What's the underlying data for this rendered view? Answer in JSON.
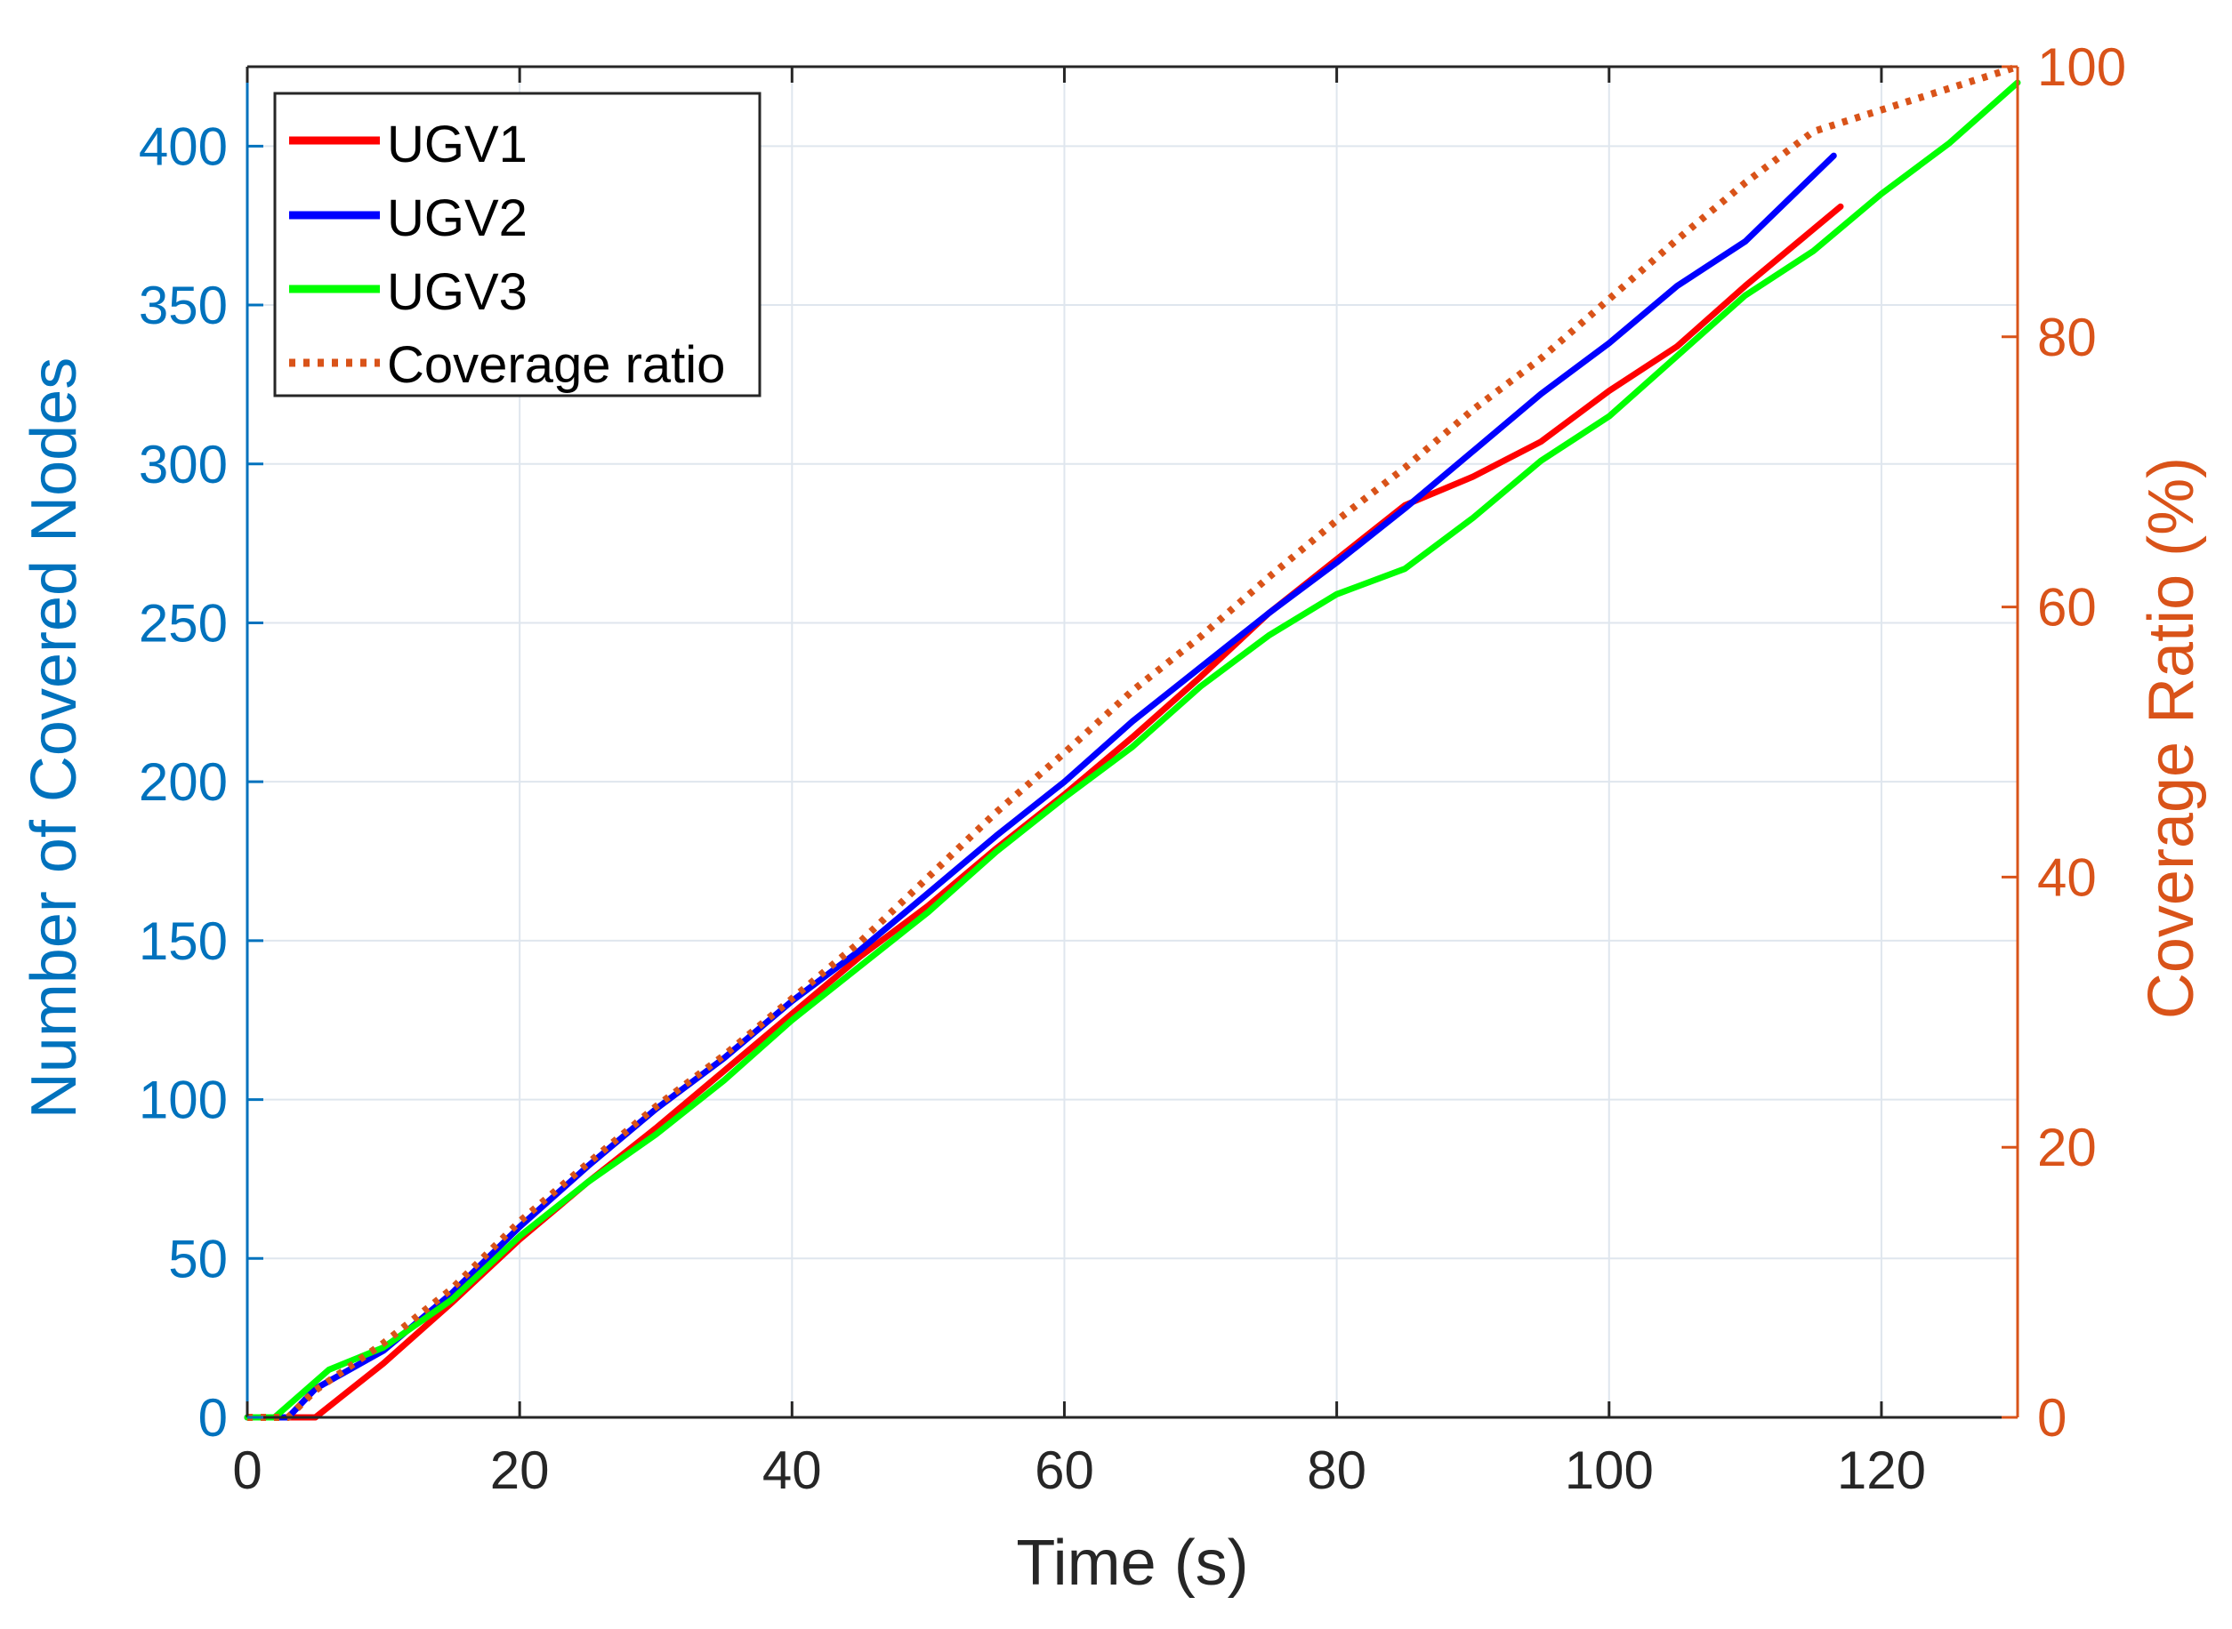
{
  "colors": {
    "left_axis": "#0072BD",
    "right_axis": "#D95319",
    "axes": "#262626",
    "grid": "#dfe6ee",
    "ugv1": "#ff0000",
    "ugv2": "#0000ff",
    "ugv3": "#00ff00",
    "coverage": "#D95319"
  },
  "chart_data": {
    "type": "line",
    "xlabel": "Time (s)",
    "ylabel_left": "Number of Covered Nodes",
    "ylabel_right": "Coverage Ratio (%)",
    "xlim": [
      0,
      130
    ],
    "ylim_left": [
      0,
      425
    ],
    "ylim_right": [
      0,
      100
    ],
    "xticks": [
      "0",
      "20",
      "40",
      "60",
      "80",
      "100",
      "120"
    ],
    "yticks_left": [
      "0",
      "50",
      "100",
      "150",
      "200",
      "250",
      "300",
      "350",
      "400"
    ],
    "yticks_right": [
      "0",
      "20",
      "40",
      "60",
      "80",
      "100"
    ],
    "grid": true,
    "legend": {
      "placement": "top-left",
      "entries": [
        "UGV1",
        "UGV2",
        "UGV3",
        "Coverage ratio"
      ]
    },
    "series": [
      {
        "name": "UGV1",
        "axis": "left",
        "style": "solid",
        "color_key": "ugv1",
        "x": [
          0,
          5,
          10,
          15,
          20,
          25,
          30,
          35,
          40,
          45,
          50,
          55,
          60,
          65,
          70,
          75,
          80,
          85,
          90,
          95,
          100,
          105,
          110,
          117
        ],
        "y": [
          0,
          0,
          17,
          36,
          56,
          74,
          91,
          109,
          127,
          145,
          161,
          179,
          196,
          214,
          233,
          253,
          270,
          287,
          296,
          307,
          323,
          337,
          356,
          381
        ]
      },
      {
        "name": "UGV2",
        "axis": "left",
        "style": "solid",
        "color_key": "ugv2",
        "x": [
          0,
          3,
          5,
          10,
          15,
          20,
          25,
          30,
          35,
          40,
          45,
          50,
          55,
          60,
          65,
          70,
          75,
          80,
          85,
          90,
          95,
          100,
          105,
          110,
          116.5
        ],
        "y": [
          0,
          0,
          9,
          21,
          39,
          60,
          79,
          97,
          113,
          131,
          147,
          165,
          183,
          200,
          219,
          236,
          253,
          269,
          286,
          304,
          322,
          338,
          356,
          370,
          397
        ]
      },
      {
        "name": "UGV3",
        "axis": "left",
        "style": "solid",
        "color_key": "ugv3",
        "x": [
          0,
          2,
          6,
          10,
          15,
          20,
          25,
          30,
          35,
          40,
          45,
          50,
          55,
          60,
          65,
          70,
          75,
          80,
          85,
          90,
          95,
          100,
          105,
          110,
          115,
          120,
          125,
          130
        ],
        "y": [
          0,
          0,
          15,
          22,
          37,
          57,
          74,
          89,
          106,
          125,
          142,
          159,
          178,
          195,
          211,
          230,
          246,
          259,
          267,
          283,
          301,
          315,
          334,
          353,
          367,
          385,
          401,
          420
        ]
      },
      {
        "name": "Coverage ratio",
        "axis": "right",
        "style": "dotted",
        "color_key": "coverage",
        "x": [
          0,
          3,
          5,
          10,
          15,
          20,
          25,
          30,
          35,
          40,
          45,
          50,
          55,
          60,
          65,
          70,
          75,
          80,
          85,
          90,
          95,
          100,
          105,
          110,
          115,
          120,
          125,
          130
        ],
        "y": [
          0,
          0,
          2,
          5.5,
          9.5,
          14.5,
          18.8,
          23,
          26.8,
          31,
          35.2,
          40,
          44.8,
          49.2,
          53.8,
          57.8,
          62.2,
          66.4,
          70.3,
          74.6,
          78.4,
          82.8,
          87.2,
          91.4,
          95.2,
          96.8,
          98.4,
          100
        ]
      }
    ]
  }
}
